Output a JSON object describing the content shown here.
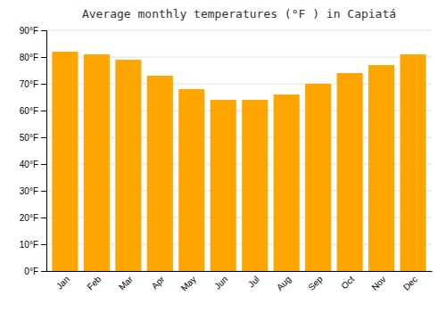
{
  "chart_data": {
    "type": "bar",
    "title": "Average monthly temperatures (°F ) in Capiatá",
    "categories": [
      "Jan",
      "Feb",
      "Mar",
      "Apr",
      "May",
      "Jun",
      "Jul",
      "Aug",
      "Sep",
      "Oct",
      "Nov",
      "Dec"
    ],
    "values": [
      82,
      81,
      79,
      73,
      68,
      64,
      64,
      66,
      70,
      74,
      77,
      81
    ],
    "color": "#FFA500",
    "ylim": [
      0,
      90
    ],
    "yticks": [
      {
        "value": 0,
        "label": "0°F"
      },
      {
        "value": 10,
        "label": "10°F"
      },
      {
        "value": 20,
        "label": "20°F"
      },
      {
        "value": 30,
        "label": "30°F"
      },
      {
        "value": 40,
        "label": "40°F"
      },
      {
        "value": 50,
        "label": "50°F"
      },
      {
        "value": 60,
        "label": "60°F"
      },
      {
        "value": 70,
        "label": "70°F"
      },
      {
        "value": 80,
        "label": "80°F"
      },
      {
        "value": 90,
        "label": "90°F"
      }
    ],
    "grid": true
  }
}
